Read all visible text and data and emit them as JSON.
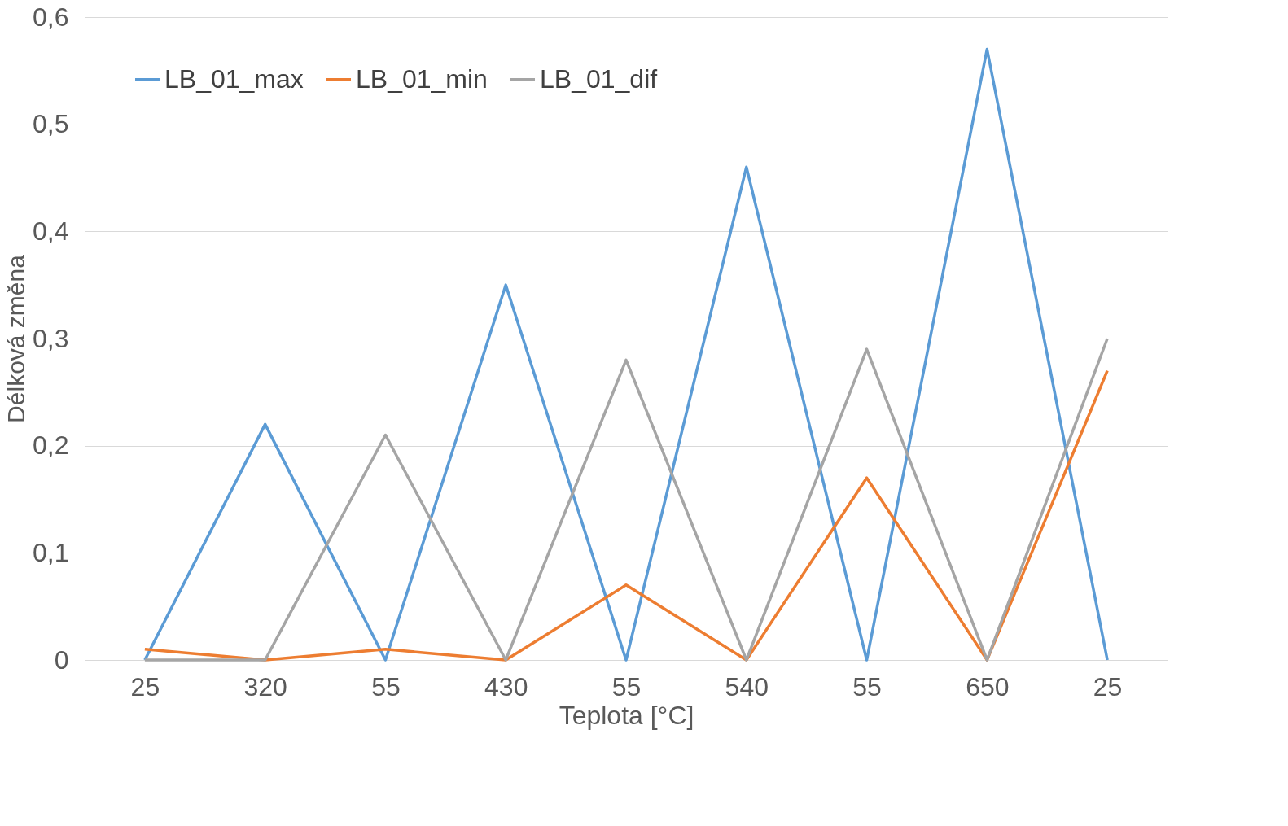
{
  "chart_data": {
    "type": "line",
    "xlabel": "Teplota [°C]",
    "ylabel": "Délková změna",
    "categories": [
      "25",
      "320",
      "55",
      "430",
      "55",
      "540",
      "55",
      "650",
      "25"
    ],
    "series": [
      {
        "name": "LB_01_max",
        "color": "#5b9bd5",
        "values": [
          0,
          0.22,
          0,
          0.35,
          0,
          0.46,
          0,
          0.57,
          0
        ]
      },
      {
        "name": "LB_01_min",
        "color": "#ed7d31",
        "values": [
          0.01,
          0,
          0.01,
          0,
          0.07,
          0,
          0.17,
          0,
          0.27
        ]
      },
      {
        "name": "LB_01_dif",
        "color": "#a5a5a5",
        "values": [
          0,
          0,
          0.21,
          0,
          0.28,
          0,
          0.29,
          0,
          0.3
        ]
      }
    ],
    "ylim": [
      0,
      0.6
    ],
    "yticks": [
      {
        "value": 0,
        "label": "0"
      },
      {
        "value": 0.1,
        "label": "0,1"
      },
      {
        "value": 0.2,
        "label": "0,2"
      },
      {
        "value": 0.3,
        "label": "0,3"
      },
      {
        "value": 0.4,
        "label": "0,4"
      },
      {
        "value": 0.5,
        "label": "0,5"
      },
      {
        "value": 0.6,
        "label": "0,6"
      }
    ],
    "grid": "y",
    "legend": "top left",
    "marker": "none",
    "line_style": "solid"
  }
}
